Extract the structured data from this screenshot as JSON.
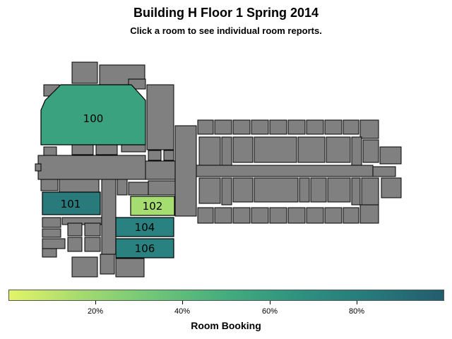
{
  "title": "Building H Floor 1 Spring 2014",
  "subtitle": "Click a room to see individual room reports.",
  "rooms": [
    {
      "id": "100",
      "label": "100",
      "booking": 0.55,
      "color": "#3aa27f"
    },
    {
      "id": "101",
      "label": "101",
      "booking": 0.88,
      "color": "#297a7b"
    },
    {
      "id": "102",
      "label": "102",
      "booking": 0.1,
      "color": "#a6dd70"
    },
    {
      "id": "104",
      "label": "104",
      "booking": 0.83,
      "color": "#2a8280"
    },
    {
      "id": "106",
      "label": "106",
      "booking": 0.83,
      "color": "#2a8280"
    }
  ],
  "legend": {
    "title": "Room Booking",
    "ticks": [
      "20%",
      "40%",
      "60%",
      "80%"
    ],
    "tick_values": [
      0.2,
      0.4,
      0.6,
      0.8
    ],
    "low_color": "#e3f468",
    "high_color": "#225d6e"
  },
  "colors": {
    "unbooked_space": "#808080",
    "outline": "#000000"
  }
}
